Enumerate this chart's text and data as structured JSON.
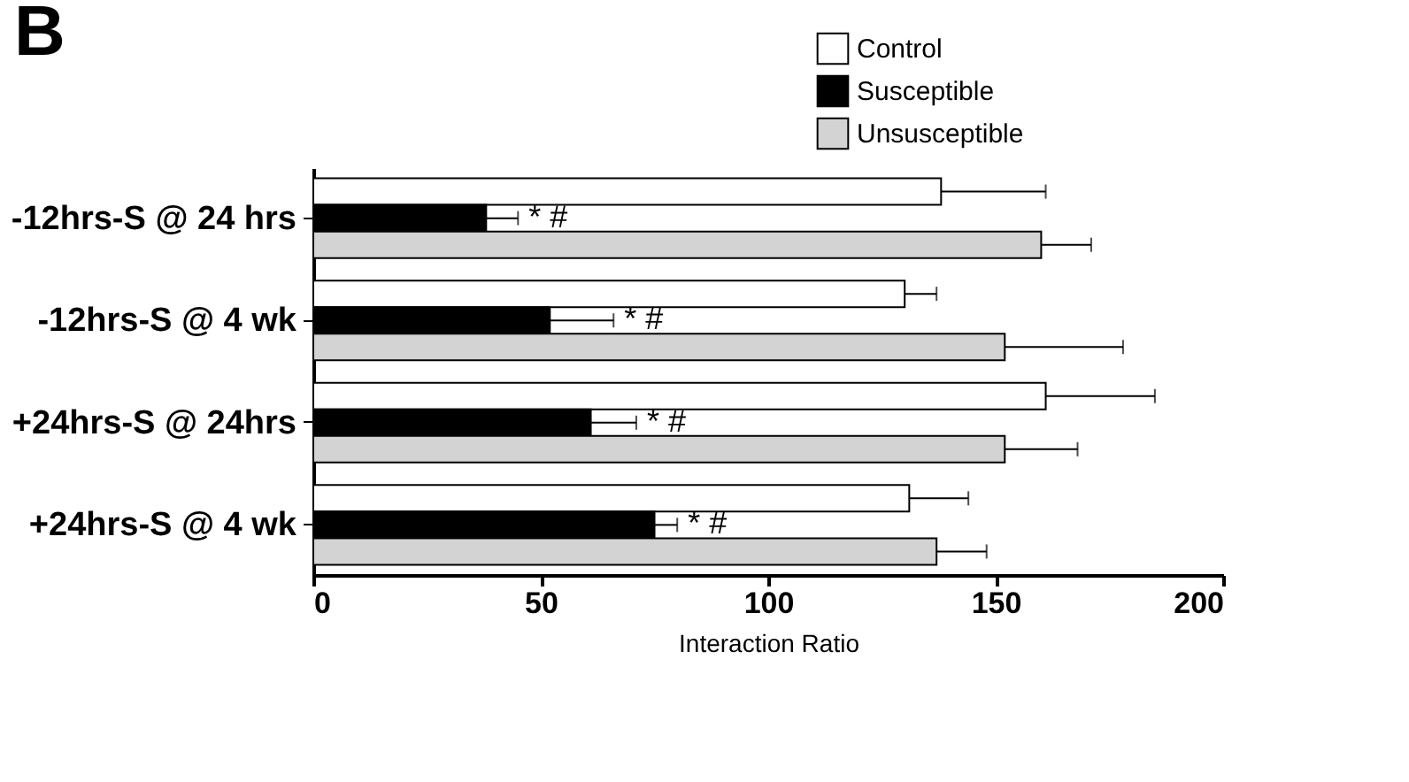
{
  "chart_data": {
    "type": "bar",
    "orientation": "horizontal",
    "title": "B",
    "xlabel": "Interaction Ratio",
    "categories": [
      "-12hrs-S @ 24 hrs",
      "-12hrs-S @  4 wk",
      "+24hrs-S @ 24hrs",
      "+24hrs-S @  4 wk"
    ],
    "series": [
      {
        "name": "Control",
        "color": "#ffffff",
        "values": [
          138,
          130,
          161,
          131
        ],
        "errors": [
          [
            138,
            161
          ],
          [
            130,
            137
          ],
          [
            161,
            185
          ],
          [
            131,
            144
          ]
        ]
      },
      {
        "name": "Susceptible",
        "color": "#000000",
        "values": [
          38,
          52,
          61,
          75
        ],
        "errors": [
          [
            38,
            45
          ],
          [
            52,
            66
          ],
          [
            61,
            71
          ],
          [
            75,
            80
          ]
        ]
      },
      {
        "name": "Unsusceptible",
        "color": "#d3d3d3",
        "values": [
          160,
          152,
          152,
          137
        ],
        "errors": [
          [
            160,
            171
          ],
          [
            152,
            178
          ],
          [
            152,
            168
          ],
          [
            137,
            148
          ]
        ]
      }
    ],
    "annotations": [
      {
        "text": "* #",
        "x": 45,
        "y": "-12hrs-S @ 24 hrs"
      },
      {
        "text": "* #",
        "x": 66,
        "y": "-12hrs-S @  4 wk"
      },
      {
        "text": "* #",
        "x": 71,
        "y": "+24hrs-S @ 24hrs"
      },
      {
        "text": "* #",
        "x": 80,
        "y": "+24hrs-S @  4 wk"
      }
    ],
    "xlim": [
      0,
      200
    ],
    "xticks": [
      0,
      50,
      100,
      150,
      200
    ],
    "legend": "top right",
    "grid": false
  }
}
